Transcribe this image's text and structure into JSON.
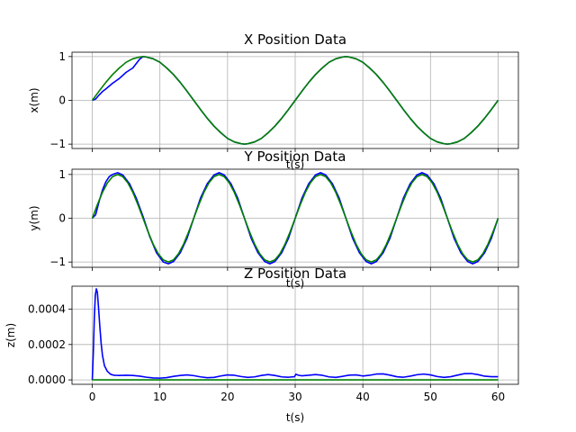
{
  "chart_data": [
    {
      "type": "line",
      "title": "X Position Data",
      "xlabel": "t(s)",
      "ylabel": "x(m)",
      "xlim": [
        -3,
        63
      ],
      "ylim": [
        -1.1,
        1.1
      ],
      "xticks": [
        0,
        10,
        20,
        30,
        40,
        50,
        60
      ],
      "xtick_labels_visible": false,
      "yticks": [
        -1,
        0,
        1
      ],
      "ytick_labels": [
        "−1",
        "0",
        "1"
      ],
      "grid": true,
      "series": [
        {
          "color": "#0000ff",
          "x": [
            0,
            0.5,
            1,
            1.5,
            2,
            3,
            4,
            5,
            6,
            7,
            7.5,
            8,
            9,
            10,
            11,
            12,
            13,
            14,
            15,
            16,
            17,
            18,
            19,
            20,
            21,
            22,
            22.5,
            23,
            24,
            25,
            26,
            27,
            28,
            29,
            30,
            31,
            32,
            33,
            34,
            35,
            36,
            37,
            37.5,
            38,
            39,
            40,
            41,
            42,
            43,
            44,
            45,
            46,
            47,
            48,
            49,
            50,
            51,
            52,
            52.5,
            53,
            54,
            55,
            56,
            57,
            58,
            59,
            60
          ],
          "y": [
            0.0,
            0.03,
            0.12,
            0.2,
            0.26,
            0.39,
            0.5,
            0.64,
            0.74,
            0.94,
            1.0,
            0.99,
            0.95,
            0.87,
            0.74,
            0.59,
            0.41,
            0.21,
            0.0,
            -0.21,
            -0.41,
            -0.59,
            -0.74,
            -0.87,
            -0.95,
            -0.99,
            -1.0,
            -0.99,
            -0.95,
            -0.87,
            -0.74,
            -0.59,
            -0.41,
            -0.21,
            0.0,
            0.21,
            0.41,
            0.59,
            0.74,
            0.87,
            0.95,
            0.99,
            1.0,
            0.99,
            0.95,
            0.87,
            0.74,
            0.59,
            0.41,
            0.21,
            0.0,
            -0.21,
            -0.41,
            -0.59,
            -0.74,
            -0.87,
            -0.95,
            -0.99,
            -1.0,
            -0.99,
            -0.95,
            -0.87,
            -0.74,
            -0.59,
            -0.41,
            -0.21,
            0.0
          ]
        },
        {
          "color": "#008000",
          "x": [
            0,
            1,
            2,
            3,
            4,
            5,
            6,
            7,
            7.5,
            8,
            9,
            10,
            11,
            12,
            13,
            14,
            15,
            16,
            17,
            18,
            19,
            20,
            21,
            22,
            22.5,
            23,
            24,
            25,
            26,
            27,
            28,
            29,
            30,
            31,
            32,
            33,
            34,
            35,
            36,
            37,
            37.5,
            38,
            39,
            40,
            41,
            42,
            43,
            44,
            45,
            46,
            47,
            48,
            49,
            50,
            51,
            52,
            52.5,
            53,
            54,
            55,
            56,
            57,
            58,
            59,
            60
          ],
          "y": [
            0.0,
            0.21,
            0.41,
            0.59,
            0.74,
            0.87,
            0.95,
            0.99,
            1.0,
            0.99,
            0.95,
            0.87,
            0.74,
            0.59,
            0.41,
            0.21,
            0.0,
            -0.21,
            -0.41,
            -0.59,
            -0.74,
            -0.87,
            -0.95,
            -0.99,
            -1.0,
            -0.99,
            -0.95,
            -0.87,
            -0.74,
            -0.59,
            -0.41,
            -0.21,
            0.0,
            0.21,
            0.41,
            0.59,
            0.74,
            0.87,
            0.95,
            0.99,
            1.0,
            0.99,
            0.95,
            0.87,
            0.74,
            0.59,
            0.41,
            0.21,
            0.0,
            -0.21,
            -0.41,
            -0.59,
            -0.74,
            -0.87,
            -0.95,
            -0.99,
            -1.0,
            -0.99,
            -0.95,
            -0.87,
            -0.74,
            -0.59,
            -0.41,
            -0.21,
            0.0
          ]
        }
      ]
    },
    {
      "type": "line",
      "title": "Y Position Data",
      "xlabel": "t(s)",
      "ylabel": "y(m)",
      "xlim": [
        -3,
        63
      ],
      "ylim": [
        -1.12,
        1.12
      ],
      "xticks": [
        0,
        10,
        20,
        30,
        40,
        50,
        60
      ],
      "xtick_labels_visible": false,
      "yticks": [
        -1,
        0,
        1
      ],
      "ytick_labels": [
        "−1",
        "0",
        "1"
      ],
      "grid": true,
      "series": [
        {
          "color": "#0000ff",
          "x": [
            0,
            0.5,
            1,
            1.5,
            2,
            2.5,
            3,
            3.75,
            4.5,
            5.5,
            6.5,
            7.5,
            8.5,
            9.5,
            10.5,
            11.25,
            12,
            13,
            14,
            15,
            16,
            17,
            18,
            18.75,
            19.5,
            20.5,
            21.5,
            22.5,
            23.5,
            24.5,
            25.5,
            26.25,
            27,
            28,
            29,
            30,
            31,
            32,
            33,
            33.75,
            34.5,
            35.5,
            36.5,
            37.5,
            38.5,
            39.5,
            40.5,
            41.25,
            42,
            43,
            44,
            45,
            46,
            47,
            48,
            48.75,
            49.5,
            50.5,
            51.5,
            52.5,
            53.5,
            54.5,
            55.5,
            56.25,
            57,
            58,
            59,
            60
          ],
          "y": [
            0.0,
            0.08,
            0.38,
            0.64,
            0.83,
            0.95,
            1.0,
            1.04,
            0.99,
            0.79,
            0.46,
            0.04,
            -0.42,
            -0.79,
            -1.0,
            -1.04,
            -0.99,
            -0.79,
            -0.46,
            0.0,
            0.46,
            0.79,
            0.99,
            1.04,
            0.99,
            0.79,
            0.46,
            0.0,
            -0.46,
            -0.79,
            -0.99,
            -1.04,
            -0.99,
            -0.79,
            -0.46,
            0.0,
            0.46,
            0.79,
            0.99,
            1.04,
            0.99,
            0.79,
            0.46,
            0.0,
            -0.46,
            -0.79,
            -0.99,
            -1.04,
            -0.99,
            -0.79,
            -0.46,
            0.0,
            0.46,
            0.79,
            0.99,
            1.04,
            0.99,
            0.79,
            0.46,
            0.0,
            -0.46,
            -0.79,
            -0.99,
            -1.04,
            -0.99,
            -0.79,
            -0.46,
            0.0
          ]
        },
        {
          "color": "#008000",
          "x": [
            0,
            0.75,
            1.5,
            2.25,
            3,
            3.75,
            4.5,
            5.25,
            6,
            6.75,
            7.5,
            8.25,
            9,
            9.75,
            10.5,
            11.25,
            12,
            12.75,
            13.5,
            14.25,
            15,
            15.75,
            16.5,
            17.25,
            18,
            18.75,
            19.5,
            20.25,
            21,
            21.75,
            22.5,
            23.25,
            24,
            24.75,
            25.5,
            26.25,
            27,
            27.75,
            28.5,
            29.25,
            30,
            30.75,
            31.5,
            32.25,
            33,
            33.75,
            34.5,
            35.25,
            36,
            36.75,
            37.5,
            38.25,
            39,
            39.75,
            40.5,
            41.25,
            42,
            42.75,
            43.5,
            44.25,
            45,
            45.75,
            46.5,
            47.25,
            48,
            48.75,
            49.5,
            50.25,
            51,
            51.75,
            52.5,
            53.25,
            54,
            54.75,
            55.5,
            56.25,
            57,
            57.75,
            58.5,
            59.25,
            60
          ],
          "y": [
            0.0,
            0.31,
            0.59,
            0.81,
            0.95,
            1.0,
            0.95,
            0.81,
            0.59,
            0.31,
            0.0,
            -0.31,
            -0.59,
            -0.81,
            -0.95,
            -1.0,
            -0.95,
            -0.81,
            -0.59,
            -0.31,
            0.0,
            0.31,
            0.59,
            0.81,
            0.95,
            1.0,
            0.95,
            0.81,
            0.59,
            0.31,
            0.0,
            -0.31,
            -0.59,
            -0.81,
            -0.95,
            -1.0,
            -0.95,
            -0.81,
            -0.59,
            -0.31,
            0.0,
            0.31,
            0.59,
            0.81,
            0.95,
            1.0,
            0.95,
            0.81,
            0.59,
            0.31,
            0.0,
            -0.31,
            -0.59,
            -0.81,
            -0.95,
            -1.0,
            -0.95,
            -0.81,
            -0.59,
            -0.31,
            0.0,
            0.31,
            0.59,
            0.81,
            0.95,
            1.0,
            0.95,
            0.81,
            0.59,
            0.31,
            0.0,
            -0.31,
            -0.59,
            -0.81,
            -0.95,
            -1.0,
            -0.95,
            -0.81,
            -0.59,
            -0.31,
            0.0
          ]
        }
      ]
    },
    {
      "type": "line",
      "title": "Z Position Data",
      "xlabel": "t(s)",
      "ylabel": "z(m)",
      "xlim": [
        -3,
        63
      ],
      "ylim": [
        -2.5e-05,
        0.00053
      ],
      "xticks": [
        0,
        10,
        20,
        30,
        40,
        50,
        60
      ],
      "xtick_labels": [
        "0",
        "10",
        "20",
        "30",
        "40",
        "50",
        "60"
      ],
      "xtick_labels_visible": true,
      "yticks": [
        0,
        0.0002,
        0.0004
      ],
      "ytick_labels": [
        "0.0000",
        "0.0002",
        "0.0004"
      ],
      "grid": true,
      "series": [
        {
          "color": "#0000ff",
          "x": [
            0,
            0.15,
            0.3,
            0.45,
            0.6,
            0.75,
            0.9,
            1.1,
            1.3,
            1.5,
            1.8,
            2.2,
            2.7,
            3.2,
            4,
            5,
            6,
            7,
            8,
            9,
            10,
            11,
            12,
            13,
            14,
            15,
            16,
            17,
            18,
            19,
            20,
            21,
            22,
            23,
            24,
            25,
            26,
            27,
            28,
            29,
            29.9,
            30.1,
            30.5,
            31,
            32,
            33,
            34,
            35,
            36,
            37,
            38,
            39,
            40,
            41,
            42,
            43,
            44,
            45,
            46,
            47,
            48,
            49,
            50,
            51,
            52,
            53,
            54,
            55,
            56,
            57,
            58,
            59,
            60
          ],
          "y": [
            0.0,
            0.00015,
            0.00035,
            0.00048,
            0.000515,
            0.000495,
            0.00042,
            0.00031,
            0.00021,
            0.00014,
            8e-05,
            5e-05,
            3.2e-05,
            2.6e-05,
            2.5e-05,
            2.6e-05,
            2.5e-05,
            2.1e-05,
            1.5e-05,
            1.1e-05,
            1e-05,
            1.3e-05,
            2e-05,
            2.5e-05,
            2.8e-05,
            2.4e-05,
            1.7e-05,
            1.2e-05,
            1.4e-05,
            2.2e-05,
            2.8e-05,
            2.6e-05,
            1.9e-05,
            1.4e-05,
            1.7e-05,
            2.5e-05,
            3e-05,
            2.5e-05,
            1.7e-05,
            1.5e-05,
            1.8e-05,
            3.2e-05,
            2.6e-05,
            2.3e-05,
            2.6e-05,
            3e-05,
            2.6e-05,
            1.7e-05,
            1.4e-05,
            2e-05,
            2.7e-05,
            2.8e-05,
            2.2e-05,
            2.6e-05,
            3.3e-05,
            3.4e-05,
            2.7e-05,
            1.8e-05,
            1.5e-05,
            2.1e-05,
            2.9e-05,
            3.3e-05,
            2.8e-05,
            1.9e-05,
            1.4e-05,
            1.8e-05,
            2.7e-05,
            3.5e-05,
            3.6e-05,
            3e-05,
            2.1e-05,
            1.8e-05,
            1.8e-05
          ]
        },
        {
          "color": "#008000",
          "x": [
            0,
            60
          ],
          "y": [
            0,
            0
          ]
        }
      ]
    }
  ]
}
